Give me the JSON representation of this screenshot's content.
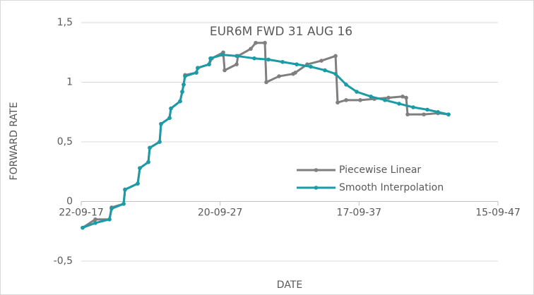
{
  "chart_data": {
    "type": "line",
    "title": "EUR6M FWD 31 AUG 16",
    "x_label": "DATE",
    "y_label": "FORWARD RATE",
    "xlim": [
      43000,
      53950
    ],
    "xticks": [
      {
        "value": 43000,
        "label": "22-09-17"
      },
      {
        "value": 46650,
        "label": "20-09-27"
      },
      {
        "value": 50300,
        "label": "17-09-37"
      },
      {
        "value": 53950,
        "label": "15-09-47"
      }
    ],
    "ylim": [
      -0.5,
      1.5
    ],
    "yticks": [
      {
        "value": -0.5,
        "label": "-0,5"
      },
      0,
      {
        "value": 0.5,
        "label": "0,5"
      },
      1,
      {
        "value": 1.5,
        "label": "1,5"
      }
    ],
    "grid": true,
    "legend": "right",
    "series": [
      {
        "name": "Piecewise Linear",
        "color": "#7f7f7f",
        "x": [
          43037,
          43371,
          43742,
          43798,
          44114,
          44151,
          44485,
          44540,
          44763,
          44800,
          45060,
          45097,
          45320,
          45357,
          45598,
          45654,
          45691,
          45728,
          46025,
          46062,
          46359,
          46434,
          46731,
          46768,
          47083,
          47120,
          47454,
          47584,
          47826,
          47863,
          48197,
          48568,
          48624,
          48939,
          49310,
          49682,
          49737,
          49960,
          50331,
          50702,
          51074,
          51445,
          51538,
          51575,
          52002,
          52373,
          52651
        ],
        "values": [
          -0.22,
          -0.15,
          -0.15,
          -0.05,
          -0.02,
          0.1,
          0.15,
          0.28,
          0.33,
          0.45,
          0.5,
          0.65,
          0.7,
          0.78,
          0.84,
          0.92,
          0.98,
          1.06,
          1.08,
          1.12,
          1.15,
          1.2,
          1.25,
          1.1,
          1.15,
          1.22,
          1.28,
          1.33,
          1.33,
          1.0,
          1.05,
          1.07,
          1.08,
          1.15,
          1.18,
          1.22,
          0.83,
          0.85,
          0.85,
          0.86,
          0.87,
          0.88,
          0.87,
          0.73,
          0.73,
          0.74,
          0.73
        ]
      },
      {
        "name": "Smooth Interpolation",
        "color": "#1a9ba5",
        "x": [
          43037,
          43371,
          43742,
          43798,
          44114,
          44151,
          44485,
          44540,
          44763,
          44800,
          45060,
          45097,
          45320,
          45357,
          45598,
          45654,
          45691,
          45728,
          46025,
          46062,
          46359,
          46396,
          46712,
          47083,
          47547,
          47918,
          48290,
          48661,
          49032,
          49403,
          49682,
          49960,
          50238,
          50610,
          50981,
          51352,
          51723,
          52094,
          52373,
          52651
        ],
        "values": [
          -0.22,
          -0.18,
          -0.15,
          -0.06,
          -0.02,
          0.1,
          0.15,
          0.28,
          0.33,
          0.45,
          0.5,
          0.65,
          0.7,
          0.78,
          0.84,
          0.92,
          0.98,
          1.05,
          1.08,
          1.12,
          1.15,
          1.2,
          1.23,
          1.22,
          1.2,
          1.19,
          1.17,
          1.15,
          1.13,
          1.1,
          1.07,
          0.98,
          0.92,
          0.88,
          0.85,
          0.82,
          0.79,
          0.77,
          0.75,
          0.73
        ]
      }
    ]
  }
}
